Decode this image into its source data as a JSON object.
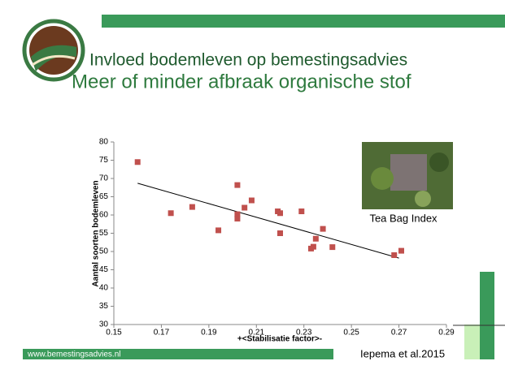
{
  "slide": {
    "title": "Invloed bodemleven op bemestingsadvies",
    "subtitle": "Meer of minder afbraak organische stof",
    "image_caption": "Tea Bag Index",
    "footer_url": "www.bemestingsadvies.nl",
    "citation": "Iepema et al.2015"
  },
  "chart_data": {
    "type": "scatter",
    "color": "#c0504d",
    "x_label": "+<Stabilisatie factor>-",
    "y_label": "Aantal soorten bodemleven",
    "x": [
      0.16,
      0.174,
      0.183,
      0.194,
      0.202,
      0.202,
      0.202,
      0.205,
      0.208,
      0.219,
      0.22,
      0.22,
      0.229,
      0.233,
      0.234,
      0.238,
      0.235,
      0.242,
      0.268,
      0.271
    ],
    "values": [
      74.5,
      60.5,
      62.2,
      55.8,
      68.2,
      60.2,
      59,
      62,
      64,
      61,
      60.5,
      55,
      61,
      50.8,
      51.3,
      56.2,
      53.5,
      51.2,
      49,
      50.2
    ],
    "trendline": {
      "x": [
        0.16,
        0.27
      ],
      "y": [
        68.7,
        48.2
      ]
    },
    "xlim": [
      0.15,
      0.29
    ],
    "ylim": [
      30,
      80
    ],
    "xticks": [
      0.15,
      0.17,
      0.19,
      0.21,
      0.23,
      0.25,
      0.27,
      0.29
    ],
    "yticks": [
      30,
      35,
      40,
      45,
      50,
      55,
      60,
      65,
      70,
      75,
      80
    ]
  }
}
